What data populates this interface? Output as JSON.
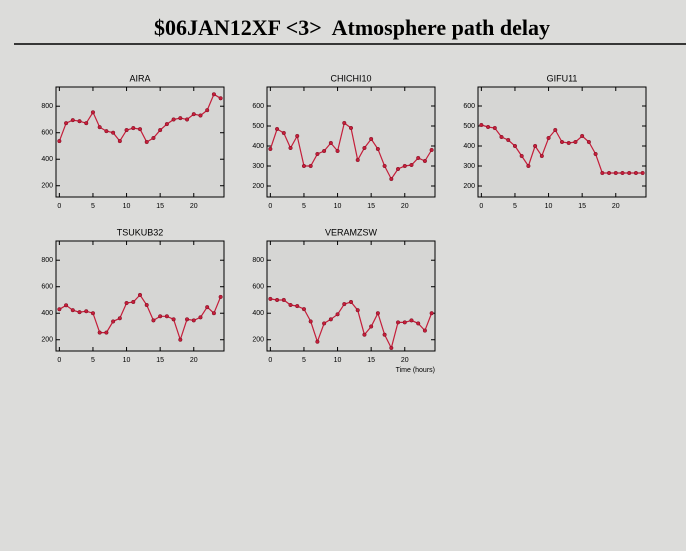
{
  "title": "$06JAN12XF <3>  Atmosphere path delay",
  "chart_data": [
    {
      "type": "line",
      "title": "AIRA",
      "color": "#c41e3a",
      "x": [
        0,
        1,
        2,
        3,
        4,
        5,
        6,
        7,
        8,
        9,
        10,
        11,
        12,
        13,
        14,
        15,
        16,
        17,
        18,
        19,
        20,
        21,
        22,
        23,
        24
      ],
      "values": [
        537,
        672,
        695,
        687,
        672,
        754,
        642,
        612,
        600,
        537,
        620,
        635,
        627,
        530,
        560,
        620,
        665,
        700,
        710,
        700,
        740,
        730,
        770,
        890,
        860
      ],
      "xlim": [
        -0.5,
        24.5
      ],
      "xticks": [
        0,
        5,
        10,
        15,
        20
      ],
      "ylim": [
        115,
        945
      ],
      "yticks": [
        200,
        400,
        600,
        800
      ]
    },
    {
      "type": "line",
      "title": "CHICHI10",
      "color": "#c41e3a",
      "x": [
        0,
        1,
        2,
        3,
        4,
        5,
        6,
        7,
        8,
        9,
        10,
        11,
        12,
        13,
        14,
        15,
        16,
        17,
        18,
        19,
        20,
        21,
        22,
        23,
        24
      ],
      "values": [
        385,
        485,
        465,
        390,
        450,
        300,
        300,
        360,
        375,
        415,
        375,
        515,
        490,
        330,
        390,
        435,
        385,
        300,
        235,
        285,
        300,
        305,
        340,
        325,
        380
      ],
      "xlim": [
        -0.5,
        24.5
      ],
      "xticks": [
        0,
        5,
        10,
        15,
        20
      ],
      "ylim": [
        145,
        695
      ],
      "yticks": [
        200,
        300,
        400,
        500,
        600
      ]
    },
    {
      "type": "line",
      "title": "GIFU11",
      "color": "#c41e3a",
      "x": [
        0,
        1,
        2,
        3,
        4,
        5,
        6,
        7,
        8,
        9,
        10,
        11,
        12,
        13,
        14,
        15,
        16,
        17,
        18,
        19,
        20,
        21,
        22,
        23,
        24
      ],
      "values": [
        505,
        495,
        490,
        445,
        430,
        400,
        350,
        300,
        400,
        350,
        440,
        480,
        420,
        415,
        420,
        450,
        420,
        360,
        265,
        265,
        265,
        265,
        265,
        265,
        265
      ],
      "xlim": [
        -0.5,
        24.5
      ],
      "xticks": [
        0,
        5,
        10,
        15,
        20
      ],
      "ylim": [
        145,
        695
      ],
      "yticks": [
        200,
        300,
        400,
        500,
        600
      ]
    },
    {
      "type": "line",
      "title": "TSUKUB32",
      "color": "#c41e3a",
      "x": [
        0,
        1,
        2,
        3,
        4,
        5,
        6,
        7,
        8,
        9,
        10,
        11,
        12,
        13,
        14,
        15,
        16,
        17,
        18,
        19,
        20,
        21,
        22,
        23,
        24
      ],
      "values": [
        430,
        460,
        423,
        408,
        415,
        400,
        254,
        254,
        338,
        362,
        477,
        485,
        538,
        462,
        346,
        377,
        377,
        354,
        200,
        354,
        346,
        369,
        446,
        400,
        523
      ],
      "xlim": [
        -0.5,
        24.5
      ],
      "xticks": [
        0,
        5,
        10,
        15,
        20
      ],
      "ylim": [
        115,
        945
      ],
      "yticks": [
        200,
        400,
        600,
        800
      ]
    },
    {
      "type": "line",
      "title": "VERAMZSW",
      "color": "#c41e3a",
      "xlabel": "Time (hours)",
      "x": [
        0,
        1,
        2,
        3,
        4,
        5,
        6,
        7,
        8,
        9,
        10,
        11,
        12,
        13,
        14,
        15,
        16,
        17,
        18,
        19,
        20,
        21,
        22,
        23,
        24
      ],
      "values": [
        508,
        500,
        500,
        462,
        454,
        431,
        338,
        185,
        323,
        354,
        392,
        469,
        485,
        423,
        238,
        300,
        400,
        238,
        138,
        331,
        331,
        346,
        323,
        269,
        400
      ],
      "xlim": [
        -0.5,
        24.5
      ],
      "xticks": [
        0,
        5,
        10,
        15,
        20
      ],
      "ylim": [
        115,
        945
      ],
      "yticks": [
        200,
        400,
        600,
        800
      ]
    }
  ]
}
